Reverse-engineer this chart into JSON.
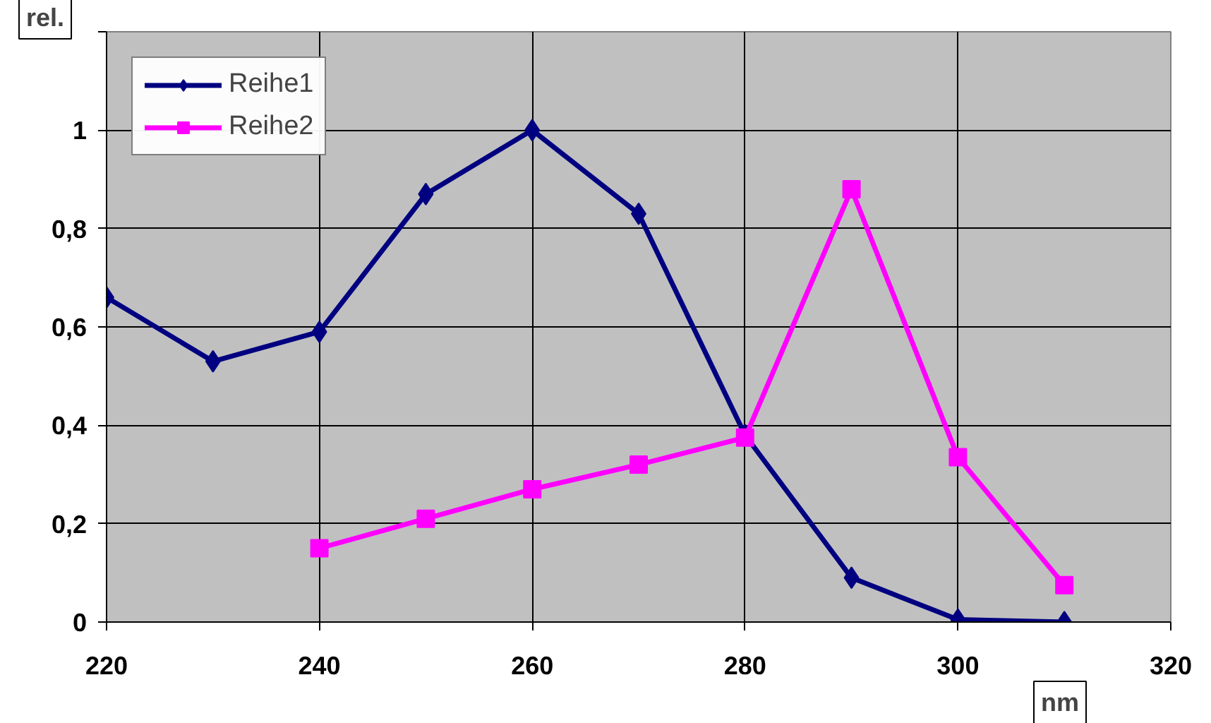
{
  "chart_data": {
    "type": "line",
    "xlabel": "nm",
    "ylabel": "rel.",
    "xlim": [
      220,
      320
    ],
    "xticks": [
      220,
      240,
      260,
      280,
      300,
      320
    ],
    "ylim": [
      0,
      1.2
    ],
    "yticks": [
      0,
      {
        "value": 0.2,
        "label": "0,2"
      },
      {
        "value": 0.4,
        "label": "0,4"
      },
      {
        "value": 0.6,
        "label": "0,6"
      },
      {
        "value": 0.8,
        "label": "0,8"
      },
      1,
      {
        "value": 1.2,
        "label": null
      }
    ],
    "grid": true,
    "legend": "top left",
    "line_style": "solid",
    "series": [
      {
        "name": "Reihe1",
        "color": "#000080",
        "marker": "diamond",
        "x": [
          220,
          230,
          240,
          250,
          260,
          270,
          280,
          290,
          300,
          310
        ],
        "values": [
          0.66,
          0.53,
          0.59,
          0.87,
          1.0,
          0.83,
          0.38,
          0.09,
          0.005,
          0.0
        ]
      },
      {
        "name": "Reihe2",
        "color": "#ff00ff",
        "marker": "square",
        "x": [
          240,
          250,
          260,
          270,
          280,
          290,
          300,
          310
        ],
        "values": [
          0.15,
          0.21,
          0.27,
          0.32,
          0.375,
          0.88,
          0.335,
          0.075
        ]
      }
    ]
  }
}
